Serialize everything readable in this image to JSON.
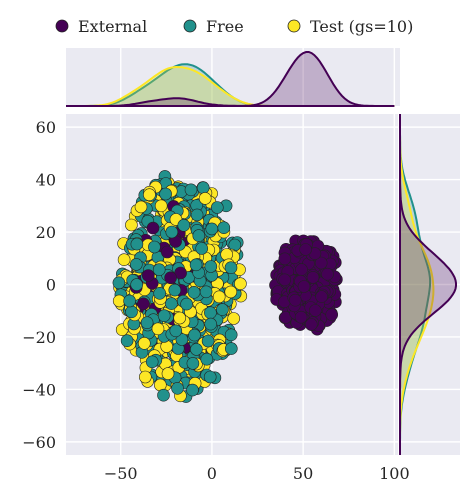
{
  "chart_data": {
    "type": "scatter",
    "title": "",
    "xlabel": "",
    "ylabel": "",
    "xlim": [
      -80,
      102
    ],
    "ylim": [
      -65,
      65
    ],
    "x_ticks": [
      -50,
      0,
      50,
      100
    ],
    "y_ticks": [
      -60,
      -40,
      -20,
      0,
      20,
      40,
      60
    ],
    "x_tick_labels": [
      "−50",
      "0",
      "50",
      "100"
    ],
    "y_tick_labels": [
      "−60",
      "−40",
      "−20",
      "0",
      "20",
      "40",
      "60"
    ],
    "grid": true,
    "legend_position": "top",
    "marginal_plots": "kde",
    "series": [
      {
        "name": "External",
        "color": "#440154",
        "clusters": [
          {
            "cx": 52,
            "cy": 0,
            "rx": 18,
            "ry": 18,
            "n": 420
          },
          {
            "cx": -20,
            "cy": 2,
            "rx": 24,
            "ry": 28,
            "n": 70
          }
        ]
      },
      {
        "name": "Free",
        "color": "#21918c",
        "clusters": [
          {
            "cx": -17,
            "cy": 0,
            "rx": 34,
            "ry": 44,
            "n": 560
          }
        ]
      },
      {
        "name": "Test (gs=10)",
        "color": "#fde725",
        "clusters": [
          {
            "cx": -18,
            "cy": -1,
            "rx": 34,
            "ry": 42,
            "n": 520
          }
        ]
      }
    ]
  }
}
